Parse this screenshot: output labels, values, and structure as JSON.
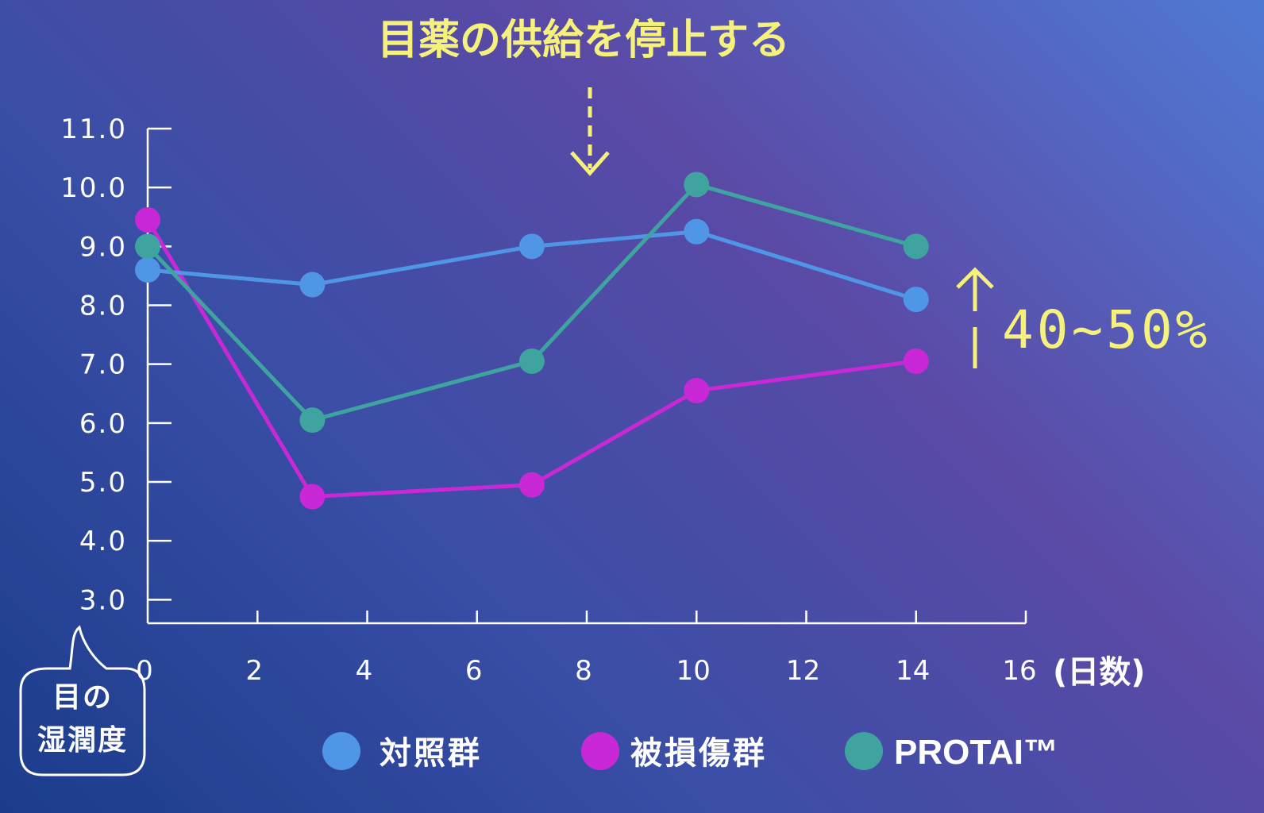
{
  "annotation": {
    "title": "目薬の供給を停止する",
    "improvement": "40~50%"
  },
  "axis": {
    "x_unit": "(日数)",
    "y_label_lines": [
      "目の",
      "湿潤度"
    ]
  },
  "colors": {
    "control": "#4f97e6",
    "damaged": "#c928d6",
    "protai": "#3fa3a0",
    "annotation": "#f5f17a"
  },
  "chart_data": {
    "type": "line",
    "x_ticks": [
      0,
      2,
      4,
      6,
      8,
      10,
      12,
      14,
      16
    ],
    "y_ticks": [
      "3.0",
      "4.0",
      "5.0",
      "6.0",
      "7.0",
      "8.0",
      "9.0",
      "10.0",
      "11.0"
    ],
    "xlim": [
      0,
      16
    ],
    "ylim": [
      2.6,
      11.0
    ],
    "series": [
      {
        "name": "対照群",
        "color": "#4f97e6",
        "x": [
          0,
          3,
          7,
          10,
          14
        ],
        "y": [
          8.6,
          8.35,
          9.0,
          9.25,
          8.1
        ]
      },
      {
        "name": "被損傷群",
        "color": "#c928d6",
        "x": [
          0,
          3,
          7,
          10,
          14
        ],
        "y": [
          9.45,
          4.75,
          4.95,
          6.55,
          7.05
        ]
      },
      {
        "name": "PROTAI™",
        "color": "#3fa3a0",
        "x": [
          0,
          3,
          7,
          10,
          14
        ],
        "y": [
          9.0,
          6.05,
          7.05,
          10.05,
          9.0
        ]
      }
    ]
  }
}
